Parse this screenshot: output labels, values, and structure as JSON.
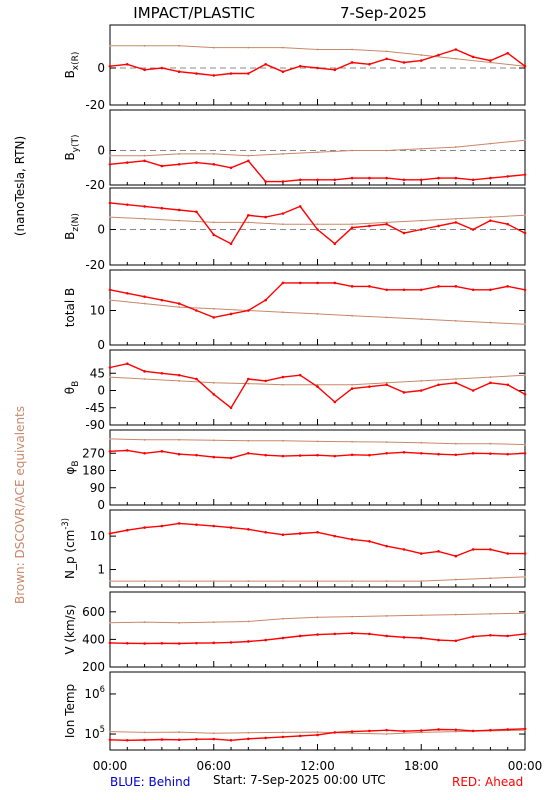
{
  "chart_data": {
    "type": "line",
    "title": "IMPACT/PLASTIC",
    "date": "7-Sep-2025",
    "x_ticks": [
      "00:00",
      "06:00",
      "12:00",
      "18:00",
      "00:00"
    ],
    "x_range_hours": [
      0,
      24
    ],
    "footer": {
      "behind": "BLUE: Behind",
      "start": "Start:   7-Sep-2025 00:00 UTC",
      "ahead": "RED: Ahead"
    },
    "group_labels": {
      "field": "(nanoTesla, RTN)",
      "equivalents": "Brown: DSCOVR/ACE equivalents"
    },
    "colors": {
      "ahead": "#ff0000",
      "equivalent": "#c8886a",
      "axes": "#000000"
    },
    "panels": [
      {
        "id": "bx",
        "ylabel": "B_x(R)",
        "ylim": [
          -20,
          20
        ],
        "ticks": [
          {
            "value": 0,
            "label": "0"
          },
          {
            "value": -20,
            "label": "-20"
          }
        ],
        "dashed_zero": true,
        "series": [
          {
            "role": "ahead",
            "x": [
              0,
              1,
              2,
              3,
              4,
              5,
              6,
              7,
              8,
              9,
              10,
              11,
              12,
              13,
              14,
              15,
              16,
              17,
              18,
              19,
              20,
              21,
              22,
              23,
              24
            ],
            "values": [
              1,
              2,
              -1,
              0,
              -2,
              -3,
              -4,
              -3,
              -3,
              2,
              -2,
              1,
              0,
              -1,
              3,
              2,
              5,
              3,
              4,
              7,
              10,
              6,
              4,
              8,
              1
            ]
          },
          {
            "role": "equivalent",
            "x": [
              0,
              2,
              4,
              6,
              8,
              10,
              12,
              14,
              16,
              18,
              20,
              22,
              24
            ],
            "values": [
              12,
              12,
              12,
              11,
              11,
              11,
              10,
              10,
              9,
              7,
              5,
              3,
              1
            ]
          }
        ]
      },
      {
        "id": "by",
        "ylabel": "B_y(T)",
        "ylim": [
          -20,
          20
        ],
        "ticks": [
          {
            "value": 0,
            "label": "0"
          },
          {
            "value": -20,
            "label": "-20"
          }
        ],
        "dashed_zero": true,
        "series": [
          {
            "role": "ahead",
            "x": [
              0,
              1,
              2,
              3,
              4,
              5,
              6,
              7,
              8,
              9,
              10,
              11,
              12,
              13,
              14,
              15,
              16,
              17,
              18,
              19,
              20,
              21,
              22,
              23,
              24
            ],
            "values": [
              -8,
              -7,
              -6,
              -9,
              -8,
              -7,
              -8,
              -10,
              -6,
              -18,
              -18,
              -17,
              -17,
              -17,
              -16,
              -16,
              -16,
              -17,
              -17,
              -16,
              -16,
              -17,
              -16,
              -15,
              -14
            ]
          },
          {
            "role": "equivalent",
            "x": [
              0,
              2,
              4,
              6,
              8,
              10,
              12,
              14,
              16,
              18,
              20,
              22,
              24
            ],
            "values": [
              -3,
              -3,
              -2,
              -2,
              -3,
              -2,
              -1,
              0,
              0,
              1,
              2,
              4,
              6
            ]
          }
        ]
      },
      {
        "id": "bz",
        "ylabel": "B_z(N)",
        "ylim": [
          -20,
          20
        ],
        "ticks": [
          {
            "value": 0,
            "label": "0"
          },
          {
            "value": -20,
            "label": "-20"
          }
        ],
        "dashed_zero": true,
        "series": [
          {
            "role": "ahead",
            "x": [
              0,
              1,
              2,
              3,
              4,
              5,
              6,
              7,
              8,
              9,
              10,
              11,
              12,
              13,
              14,
              15,
              16,
              17,
              18,
              19,
              20,
              21,
              22,
              23,
              24
            ],
            "values": [
              15,
              14,
              13,
              12,
              11,
              10,
              -3,
              -8,
              8,
              7,
              9,
              13,
              0,
              -8,
              1,
              2,
              3,
              -2,
              0,
              2,
              4,
              0,
              5,
              3,
              -2
            ]
          },
          {
            "role": "equivalent",
            "x": [
              0,
              2,
              4,
              6,
              8,
              10,
              12,
              14,
              16,
              18,
              20,
              22,
              24
            ],
            "values": [
              7,
              6,
              5,
              4,
              4,
              3,
              3,
              3,
              4,
              5,
              6,
              7,
              8
            ]
          }
        ]
      },
      {
        "id": "btotal",
        "ylabel": "total B",
        "ylim": [
          0,
          20
        ],
        "ticks": [
          {
            "value": 10,
            "label": "10"
          },
          {
            "value": 0,
            "label": "0"
          }
        ],
        "dashed_zero": false,
        "series": [
          {
            "role": "ahead",
            "x": [
              0,
              1,
              2,
              3,
              4,
              5,
              6,
              7,
              8,
              9,
              10,
              11,
              12,
              13,
              14,
              15,
              16,
              17,
              18,
              19,
              20,
              21,
              22,
              23,
              24
            ],
            "values": [
              16,
              15,
              14,
              13,
              12,
              10,
              8,
              9,
              10,
              13,
              18,
              18,
              18,
              18,
              17,
              17,
              16,
              16,
              16,
              17,
              17,
              16,
              16,
              17,
              16
            ]
          },
          {
            "role": "equivalent",
            "x": [
              0,
              2,
              4,
              6,
              8,
              10,
              12,
              14,
              16,
              18,
              20,
              22,
              24
            ],
            "values": [
              13,
              12,
              11,
              10.5,
              10,
              9.5,
              9,
              8.5,
              8,
              7.5,
              7,
              6.5,
              6
            ]
          }
        ]
      },
      {
        "id": "theta",
        "ylabel": "θ_B",
        "ylim": [
          -90,
          90
        ],
        "ticks": [
          {
            "value": 45,
            "label": "45"
          },
          {
            "value": 0,
            "label": "0"
          },
          {
            "value": -45,
            "label": "-45"
          },
          {
            "value": -90,
            "label": "-90"
          }
        ],
        "dashed_zero": false,
        "series": [
          {
            "role": "ahead",
            "x": [
              0,
              1,
              2,
              3,
              4,
              5,
              6,
              7,
              8,
              9,
              10,
              11,
              12,
              13,
              14,
              15,
              16,
              17,
              18,
              19,
              20,
              21,
              22,
              23,
              24
            ],
            "values": [
              60,
              70,
              50,
              45,
              40,
              30,
              -10,
              -45,
              30,
              25,
              35,
              40,
              10,
              -30,
              5,
              10,
              15,
              -5,
              0,
              15,
              20,
              0,
              20,
              15,
              -10
            ]
          },
          {
            "role": "equivalent",
            "x": [
              0,
              2,
              4,
              6,
              8,
              10,
              12,
              14,
              16,
              18,
              20,
              22,
              24
            ],
            "values": [
              35,
              30,
              25,
              20,
              18,
              15,
              15,
              15,
              20,
              25,
              30,
              35,
              40
            ]
          }
        ]
      },
      {
        "id": "phi",
        "ylabel": "φ_B",
        "ylim": [
          0,
          360
        ],
        "ticks": [
          {
            "value": 270,
            "label": "270"
          },
          {
            "value": 180,
            "label": "180"
          },
          {
            "value": 90,
            "label": "90"
          },
          {
            "value": 0,
            "label": "0"
          }
        ],
        "dashed_zero": false,
        "series": [
          {
            "role": "ahead",
            "x": [
              0,
              1,
              2,
              3,
              4,
              5,
              6,
              7,
              8,
              9,
              10,
              11,
              12,
              13,
              14,
              15,
              16,
              17,
              18,
              19,
              20,
              21,
              22,
              23,
              24
            ],
            "values": [
              280,
              285,
              270,
              280,
              265,
              260,
              250,
              245,
              270,
              260,
              255,
              258,
              260,
              255,
              262,
              260,
              270,
              275,
              270,
              265,
              262,
              270,
              268,
              265,
              270
            ]
          },
          {
            "role": "equivalent",
            "x": [
              0,
              2,
              4,
              6,
              8,
              10,
              12,
              14,
              16,
              18,
              20,
              22,
              24
            ],
            "values": [
              345,
              340,
              340,
              338,
              335,
              335,
              332,
              330,
              328,
              325,
              320,
              320,
              315
            ]
          }
        ]
      },
      {
        "id": "np",
        "ylabel": "N_p (cm^-3)",
        "log": true,
        "ylim": [
          0.3,
          40
        ],
        "ticks": [
          {
            "value": 10,
            "label": "10"
          },
          {
            "value": 1,
            "label": "1"
          }
        ],
        "dashed_zero": false,
        "series": [
          {
            "role": "ahead",
            "x": [
              0,
              1,
              2,
              3,
              4,
              5,
              6,
              7,
              8,
              9,
              10,
              11,
              12,
              13,
              14,
              15,
              16,
              17,
              18,
              19,
              20,
              21,
              22,
              23,
              24
            ],
            "values": [
              12,
              15,
              18,
              20,
              24,
              22,
              20,
              18,
              16,
              13,
              11,
              12,
              13,
              10,
              8,
              7,
              5,
              4,
              3,
              3.5,
              2.5,
              4,
              4,
              3,
              3
            ]
          },
          {
            "role": "equivalent",
            "x": [
              0,
              2,
              4,
              6,
              8,
              10,
              12,
              14,
              16,
              18,
              20,
              22,
              24
            ],
            "values": [
              0.45,
              0.45,
              0.45,
              0.45,
              0.45,
              0.45,
              0.45,
              0.45,
              0.45,
              0.45,
              0.5,
              0.55,
              0.6
            ]
          }
        ]
      },
      {
        "id": "v",
        "ylabel": "V (km/s)",
        "ylim": [
          200,
          700
        ],
        "ticks": [
          {
            "value": 600,
            "label": "600"
          },
          {
            "value": 400,
            "label": "400"
          },
          {
            "value": 200,
            "label": "200"
          }
        ],
        "dashed_zero": false,
        "series": [
          {
            "role": "ahead",
            "x": [
              0,
              1,
              2,
              3,
              4,
              5,
              6,
              7,
              8,
              9,
              10,
              11,
              12,
              13,
              14,
              15,
              16,
              17,
              18,
              19,
              20,
              21,
              22,
              23,
              24
            ],
            "values": [
              375,
              372,
              370,
              372,
              370,
              373,
              375,
              378,
              385,
              395,
              410,
              425,
              435,
              440,
              445,
              440,
              425,
              415,
              410,
              395,
              390,
              420,
              430,
              425,
              440
            ]
          },
          {
            "role": "equivalent",
            "x": [
              0,
              2,
              4,
              6,
              8,
              10,
              12,
              14,
              16,
              18,
              20,
              22,
              24
            ],
            "values": [
              520,
              525,
              520,
              525,
              530,
              550,
              560,
              565,
              570,
              575,
              580,
              585,
              590
            ]
          }
        ]
      },
      {
        "id": "temp",
        "ylabel": "Ion Temp",
        "log": true,
        "ylim": [
          40000,
          2500000
        ],
        "ticks": [
          {
            "value": 1000000,
            "label": "10^6"
          },
          {
            "value": 100000,
            "label": "10^5"
          }
        ],
        "dashed_zero": false,
        "series": [
          {
            "role": "ahead",
            "x": [
              0,
              1,
              2,
              3,
              4,
              5,
              6,
              7,
              8,
              9,
              10,
              11,
              12,
              13,
              14,
              15,
              16,
              17,
              18,
              19,
              20,
              21,
              22,
              23,
              24
            ],
            "values": [
              72000,
              70000,
              71000,
              73000,
              72000,
              74000,
              75000,
              70000,
              76000,
              80000,
              85000,
              90000,
              95000,
              110000,
              115000,
              120000,
              125000,
              118000,
              122000,
              130000,
              128000,
              120000,
              125000,
              130000,
              135000
            ]
          },
          {
            "role": "equivalent",
            "x": [
              0,
              2,
              4,
              6,
              8,
              10,
              12,
              14,
              16,
              18,
              20,
              22,
              24
            ],
            "values": [
              115000,
              110000,
              112000,
              105000,
              108000,
              110000,
              112000,
              105000,
              100000,
              110000,
              115000,
              120000,
              125000
            ]
          }
        ]
      }
    ]
  }
}
